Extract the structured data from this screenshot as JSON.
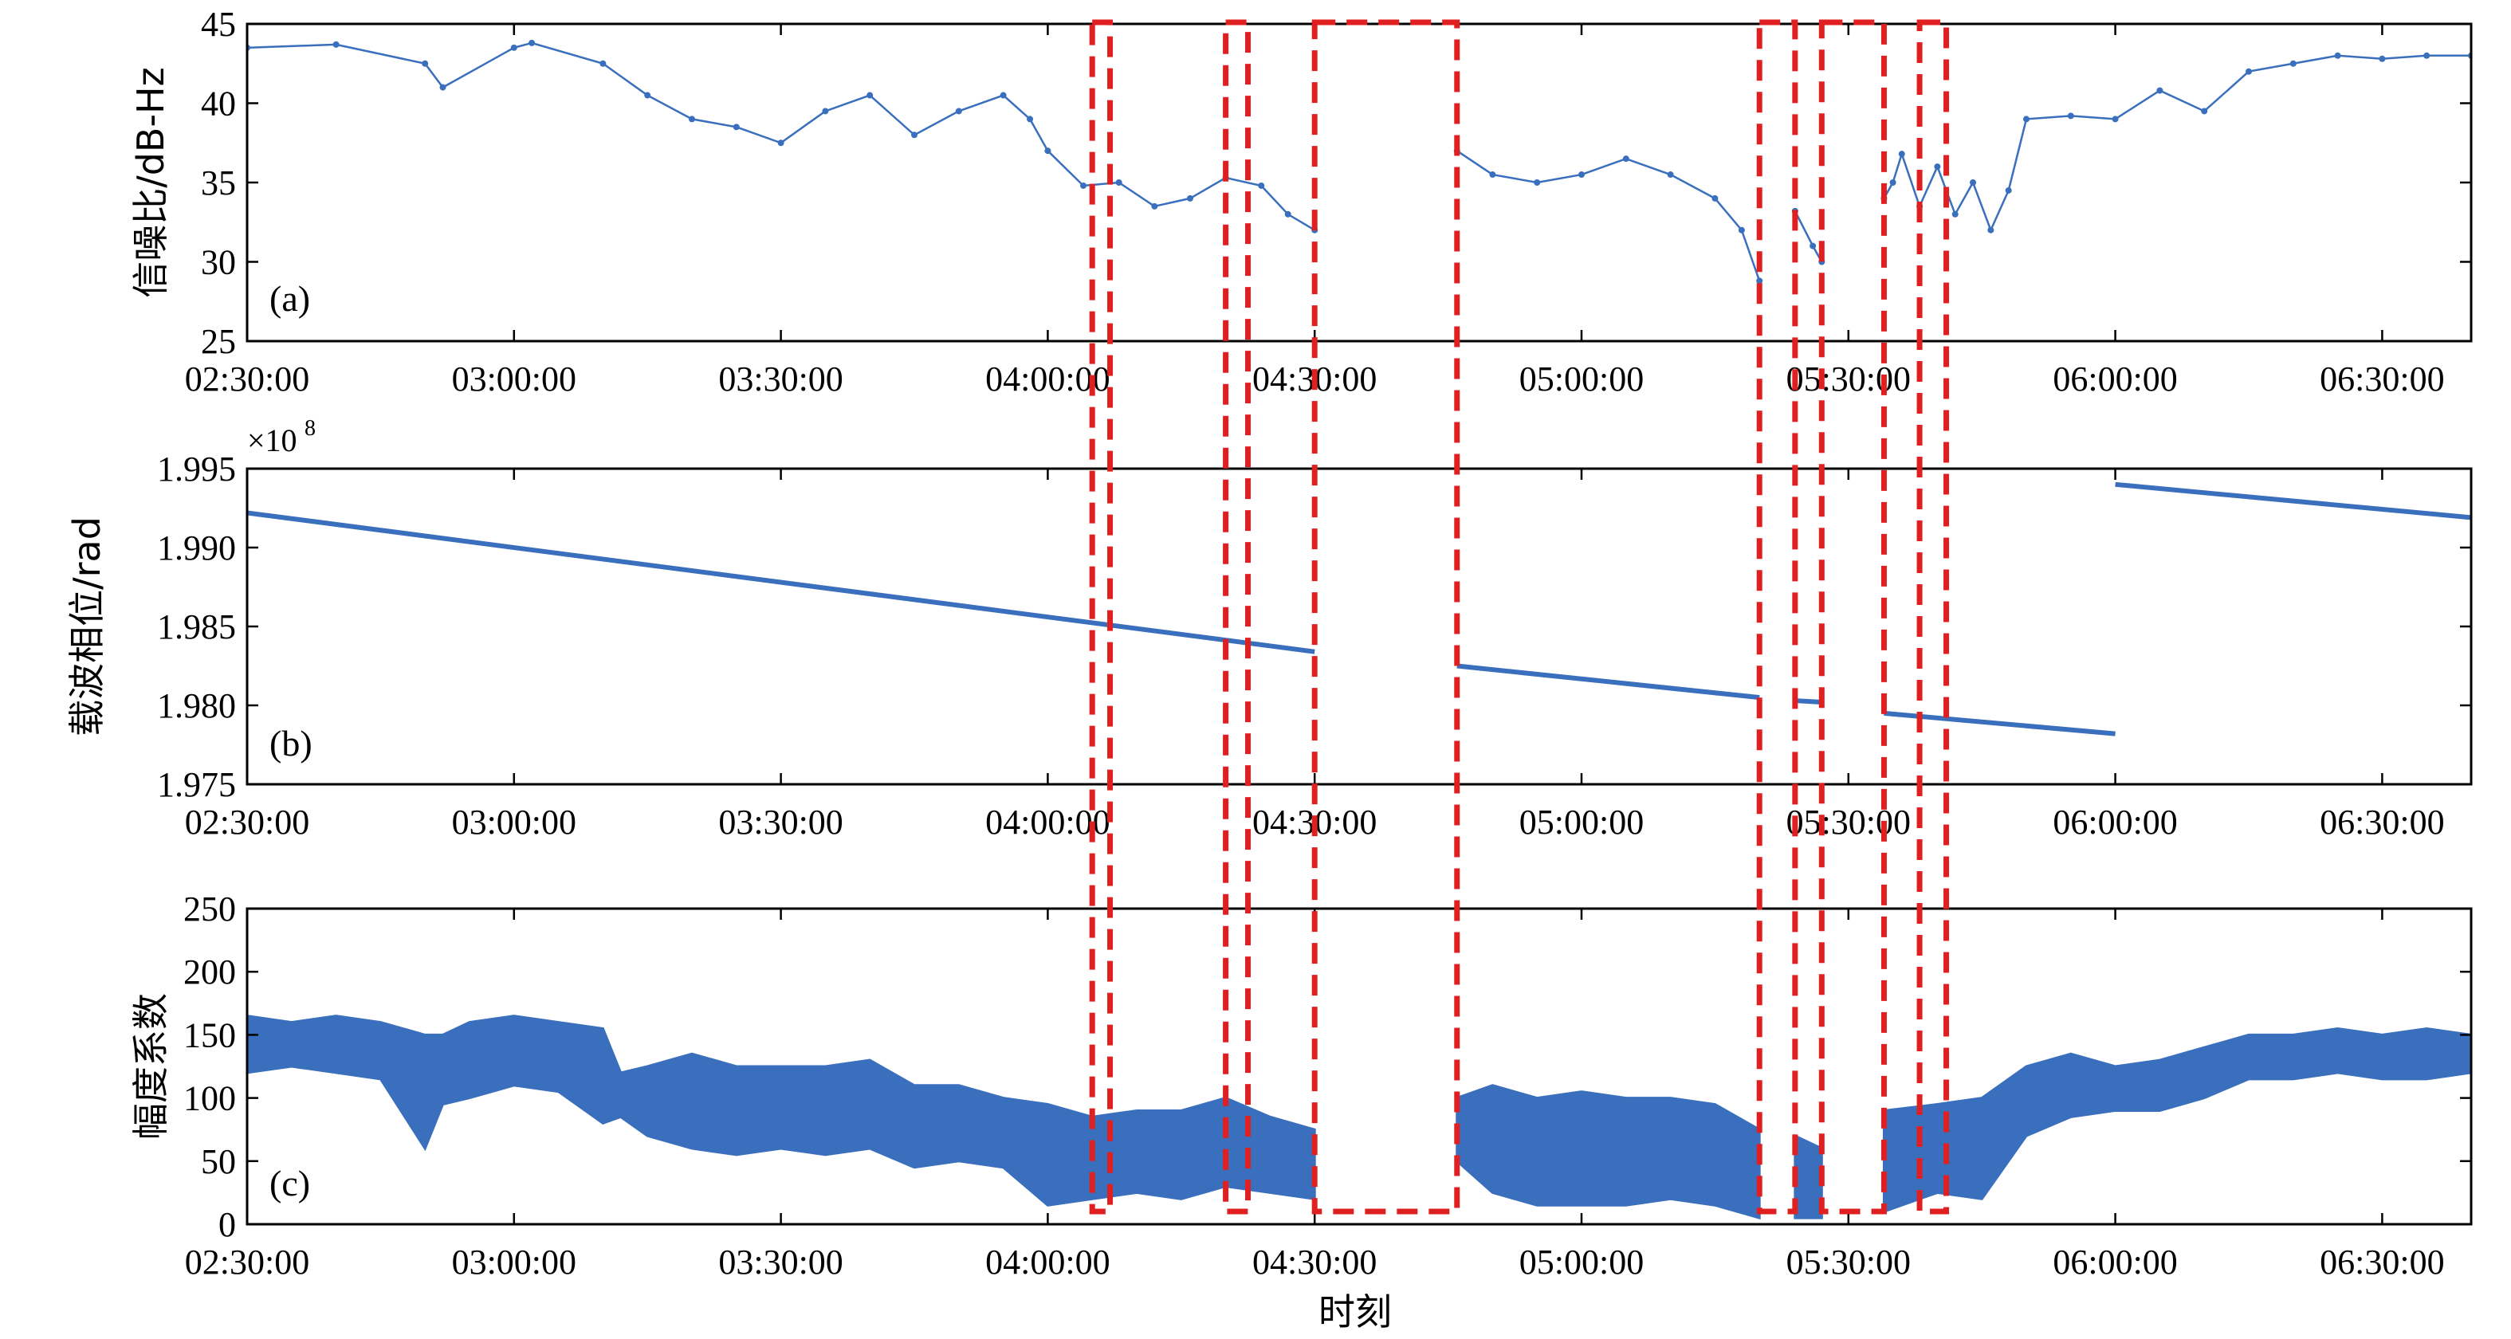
{
  "colors": {
    "series": "#3a6fbd",
    "highlight": "#e02020",
    "axis": "#000000"
  },
  "xlabel": "时刻",
  "x_ticks": [
    "02:30:00",
    "03:00:00",
    "03:30:00",
    "04:00:00",
    "04:30:00",
    "05:00:00",
    "05:30:00",
    "06:00:00",
    "06:30:00"
  ],
  "x_range": [
    "02:30:00",
    "06:40:00"
  ],
  "highlight_windows": [
    [
      "04:05:00",
      "04:07:00"
    ],
    [
      "04:20:00",
      "04:22:30"
    ],
    [
      "04:30:00",
      "04:46:00"
    ],
    [
      "05:20:00",
      "05:24:00"
    ],
    [
      "05:27:00",
      "05:34:00"
    ],
    [
      "05:38:00",
      "05:41:00"
    ]
  ],
  "chart_data": [
    {
      "type": "line",
      "panel_label": "(a)",
      "ylabel": "信噪比/dB-Hz",
      "ylim": [
        25,
        45
      ],
      "y_ticks": [
        "25",
        "30",
        "35",
        "40",
        "45"
      ],
      "series": [
        {
          "segments": [
            {
              "x": [
                "02:30:00",
                "02:40:00",
                "02:50:00",
                "02:52:00",
                "03:00:00",
                "03:02:00",
                "03:10:00",
                "03:15:00",
                "03:20:00",
                "03:25:00",
                "03:30:00",
                "03:35:00",
                "03:40:00",
                "03:45:00",
                "03:50:00",
                "03:55:00",
                "03:58:00",
                "04:00:00",
                "04:04:00",
                "04:08:00",
                "04:12:00",
                "04:16:00",
                "04:20:00",
                "04:24:00",
                "04:27:00",
                "04:30:00"
              ],
              "y": [
                43.5,
                43.7,
                42.5,
                41.0,
                43.5,
                43.8,
                42.5,
                40.5,
                39.0,
                38.5,
                37.5,
                39.5,
                40.5,
                38.0,
                39.5,
                40.5,
                39.0,
                37.0,
                34.8,
                35.0,
                33.5,
                34.0,
                35.3,
                34.8,
                33.0,
                32.0
              ]
            },
            {
              "x": [
                "04:46:00",
                "04:50:00",
                "04:55:00",
                "05:00:00",
                "05:05:00",
                "05:10:00",
                "05:15:00",
                "05:18:00",
                "05:20:00"
              ],
              "y": [
                37.0,
                35.5,
                35.0,
                35.5,
                36.5,
                35.5,
                34.0,
                32.0,
                28.8
              ]
            },
            {
              "x": [
                "05:24:00",
                "05:26:00",
                "05:27:00"
              ],
              "y": [
                33.2,
                31.0,
                30.0
              ]
            },
            {
              "x": [
                "05:34:00",
                "05:35:00",
                "05:36:00",
                "05:38:00",
                "05:40:00",
                "05:42:00",
                "05:44:00",
                "05:46:00",
                "05:48:00",
                "05:50:00",
                "05:55:00",
                "06:00:00",
                "06:05:00",
                "06:10:00",
                "06:15:00",
                "06:20:00",
                "06:25:00",
                "06:30:00",
                "06:35:00",
                "06:40:00"
              ],
              "y": [
                34.0,
                35.0,
                36.8,
                33.5,
                36.0,
                33.0,
                35.0,
                32.0,
                34.5,
                39.0,
                39.2,
                39.0,
                40.8,
                39.5,
                42.0,
                42.5,
                43.0,
                42.8,
                43.0,
                43.0
              ]
            }
          ]
        }
      ]
    },
    {
      "type": "line",
      "panel_label": "(b)",
      "ylabel": "载波相位/rad",
      "y_exponent": "8",
      "ylim": [
        1.975,
        1.995
      ],
      "y_ticks": [
        "1.975",
        "1.980",
        "1.985",
        "1.990",
        "1.995"
      ],
      "series": [
        {
          "segments": [
            {
              "x": [
                "02:30:00",
                "04:30:00"
              ],
              "y": [
                1.9922,
                1.9834
              ]
            },
            {
              "x": [
                "04:46:00",
                "05:20:00"
              ],
              "y": [
                1.9825,
                1.9805
              ]
            },
            {
              "x": [
                "05:24:00",
                "05:27:00"
              ],
              "y": [
                1.9803,
                1.9802
              ]
            },
            {
              "x": [
                "05:34:00",
                "06:00:00"
              ],
              "y": [
                1.9795,
                1.9782
              ]
            },
            {
              "x": [
                "06:00:00",
                "06:40:00"
              ],
              "y": [
                1.994,
                1.9919
              ]
            }
          ]
        }
      ]
    },
    {
      "type": "area",
      "panel_label": "(c)",
      "ylabel": "幅度系数",
      "ylim": [
        0,
        250
      ],
      "y_ticks": [
        "0",
        "50",
        "100",
        "150",
        "200",
        "250"
      ],
      "series": [
        {
          "segments": [
            {
              "x": [
                "02:30:00",
                "02:35:00",
                "02:40:00",
                "02:45:00",
                "02:50:00",
                "02:52:00",
                "02:55:00",
                "03:00:00",
                "03:05:00",
                "03:10:00",
                "03:12:00",
                "03:15:00",
                "03:20:00",
                "03:25:00",
                "03:30:00",
                "03:35:00",
                "03:40:00",
                "03:45:00",
                "03:50:00",
                "03:55:00",
                "04:00:00",
                "04:05:00",
                "04:10:00",
                "04:15:00",
                "04:20:00",
                "04:25:00",
                "04:30:00"
              ],
              "low": [
                120,
                125,
                120,
                115,
                60,
                95,
                100,
                110,
                105,
                80,
                85,
                70,
                60,
                55,
                60,
                55,
                60,
                45,
                50,
                45,
                15,
                20,
                25,
                20,
                30,
                25,
                20
              ],
              "high": [
                165,
                160,
                165,
                160,
                150,
                150,
                160,
                165,
                160,
                155,
                120,
                125,
                135,
                125,
                125,
                125,
                130,
                110,
                110,
                100,
                95,
                85,
                90,
                90,
                100,
                85,
                75
              ]
            },
            {
              "x": [
                "04:46:00",
                "04:50:00",
                "04:55:00",
                "05:00:00",
                "05:05:00",
                "05:10:00",
                "05:15:00",
                "05:20:00"
              ],
              "low": [
                50,
                25,
                15,
                15,
                15,
                20,
                15,
                5
              ],
              "high": [
                100,
                110,
                100,
                105,
                100,
                100,
                95,
                75
              ]
            },
            {
              "x": [
                "05:24:00",
                "05:27:00"
              ],
              "low": [
                5,
                5
              ],
              "high": [
                70,
                60
              ]
            },
            {
              "x": [
                "05:34:00",
                "05:40:00",
                "05:45:00",
                "05:50:00",
                "05:55:00",
                "06:00:00",
                "06:05:00",
                "06:10:00",
                "06:15:00",
                "06:20:00",
                "06:25:00",
                "06:30:00",
                "06:35:00",
                "06:40:00"
              ],
              "low": [
                10,
                25,
                20,
                70,
                85,
                90,
                90,
                100,
                115,
                115,
                120,
                115,
                115,
                120
              ],
              "high": [
                90,
                95,
                100,
                125,
                135,
                125,
                130,
                140,
                150,
                150,
                155,
                150,
                155,
                150
              ]
            }
          ]
        }
      ]
    }
  ]
}
